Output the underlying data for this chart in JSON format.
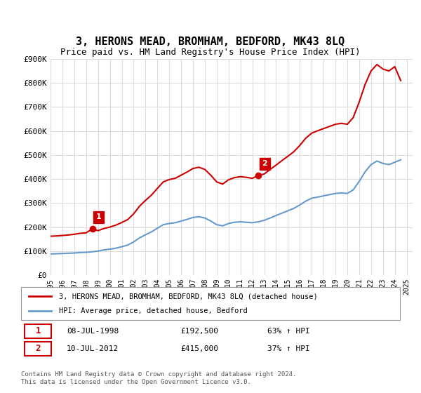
{
  "title": "3, HERONS MEAD, BROMHAM, BEDFORD, MK43 8LQ",
  "subtitle": "Price paid vs. HM Land Registry's House Price Index (HPI)",
  "ylabel_values": [
    "£0",
    "£100K",
    "£200K",
    "£300K",
    "£400K",
    "£500K",
    "£600K",
    "£700K",
    "£800K",
    "£900K"
  ],
  "ylim": [
    0,
    900000
  ],
  "xlim_start": 1995.0,
  "xlim_end": 2025.5,
  "sale1_date": "08-JUL-1998",
  "sale1_price": 192500,
  "sale1_label": "1",
  "sale1_x": 1998.52,
  "sale2_date": "10-JUL-2012",
  "sale2_price": 415000,
  "sale2_label": "2",
  "sale2_x": 2012.52,
  "legend_line1": "3, HERONS MEAD, BROMHAM, BEDFORD, MK43 8LQ (detached house)",
  "legend_line2": "HPI: Average price, detached house, Bedford",
  "table_row1": "08-JUL-1998        £192,500        63% ↑ HPI",
  "table_row2": "10-JUL-2012        £415,000        37% ↑ HPI",
  "footer": "Contains HM Land Registry data © Crown copyright and database right 2024.\nThis data is licensed under the Open Government Licence v3.0.",
  "red_color": "#cc0000",
  "blue_color": "#6699cc",
  "background_color": "#ffffff",
  "grid_color": "#dddddd",
  "hpi_x": [
    1995.0,
    1995.5,
    1996.0,
    1996.5,
    1997.0,
    1997.5,
    1998.0,
    1998.5,
    1999.0,
    1999.5,
    2000.0,
    2000.5,
    2001.0,
    2001.5,
    2002.0,
    2002.5,
    2003.0,
    2003.5,
    2004.0,
    2004.5,
    2005.0,
    2005.5,
    2006.0,
    2006.5,
    2007.0,
    2007.5,
    2008.0,
    2008.5,
    2009.0,
    2009.5,
    2010.0,
    2010.5,
    2011.0,
    2011.5,
    2012.0,
    2012.5,
    2013.0,
    2013.5,
    2014.0,
    2014.5,
    2015.0,
    2015.5,
    2016.0,
    2016.5,
    2017.0,
    2017.5,
    2018.0,
    2018.5,
    2019.0,
    2019.5,
    2020.0,
    2020.5,
    2021.0,
    2021.5,
    2022.0,
    2022.5,
    2023.0,
    2023.5,
    2024.0,
    2024.5
  ],
  "hpi_y": [
    88000,
    89000,
    90000,
    91000,
    92000,
    94000,
    95000,
    97000,
    100000,
    105000,
    108000,
    112000,
    118000,
    125000,
    138000,
    155000,
    168000,
    180000,
    195000,
    210000,
    215000,
    218000,
    225000,
    232000,
    240000,
    243000,
    238000,
    225000,
    210000,
    205000,
    215000,
    220000,
    222000,
    220000,
    218000,
    222000,
    228000,
    238000,
    248000,
    258000,
    268000,
    278000,
    292000,
    308000,
    320000,
    325000,
    330000,
    335000,
    340000,
    342000,
    340000,
    355000,
    390000,
    430000,
    460000,
    475000,
    465000,
    460000,
    470000,
    480000
  ],
  "prop_x": [
    1995.0,
    1995.5,
    1996.0,
    1996.5,
    1997.0,
    1997.5,
    1998.0,
    1998.52,
    1999.0,
    1999.5,
    2000.0,
    2000.5,
    2001.0,
    2001.5,
    2002.0,
    2002.5,
    2003.0,
    2003.5,
    2004.0,
    2004.5,
    2005.0,
    2005.5,
    2006.0,
    2006.5,
    2007.0,
    2007.5,
    2008.0,
    2008.5,
    2009.0,
    2009.5,
    2010.0,
    2010.5,
    2011.0,
    2011.5,
    2012.0,
    2012.52,
    2013.0,
    2013.5,
    2014.0,
    2014.5,
    2015.0,
    2015.5,
    2016.0,
    2016.5,
    2017.0,
    2017.5,
    2018.0,
    2018.5,
    2019.0,
    2019.5,
    2020.0,
    2020.5,
    2021.0,
    2021.5,
    2022.0,
    2022.5,
    2023.0,
    2023.5,
    2024.0,
    2024.5
  ],
  "prop_y": [
    162000,
    163000,
    165000,
    167000,
    170000,
    174000,
    176000,
    192500,
    185000,
    194000,
    200000,
    208000,
    219000,
    231000,
    255000,
    287000,
    311000,
    333000,
    361000,
    388000,
    398000,
    403000,
    416000,
    429000,
    444000,
    449000,
    440000,
    416000,
    388000,
    379000,
    397000,
    406000,
    410000,
    407000,
    403000,
    415000,
    421000,
    440000,
    458000,
    477000,
    495000,
    514000,
    540000,
    570000,
    591000,
    601000,
    610000,
    619000,
    628000,
    632000,
    628000,
    656000,
    720000,
    794000,
    850000,
    877000,
    858000,
    850000,
    868000,
    810000
  ],
  "xtick_years": [
    1995,
    1996,
    1997,
    1998,
    1999,
    2000,
    2001,
    2002,
    2003,
    2004,
    2005,
    2006,
    2007,
    2008,
    2009,
    2010,
    2011,
    2012,
    2013,
    2014,
    2015,
    2016,
    2017,
    2018,
    2019,
    2020,
    2021,
    2022,
    2023,
    2024,
    2025
  ]
}
